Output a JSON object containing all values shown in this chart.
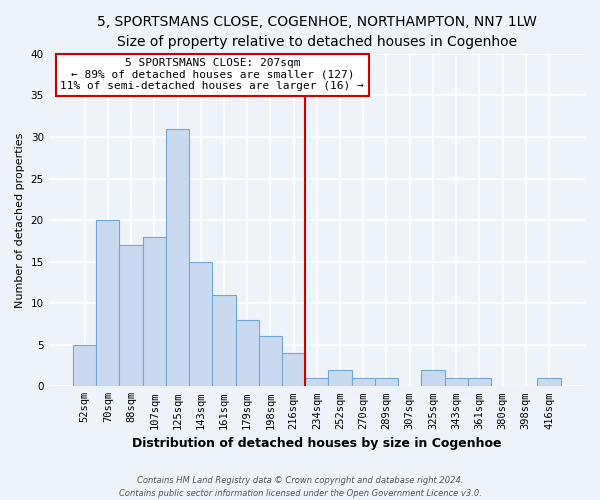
{
  "title": "5, SPORTSMANS CLOSE, COGENHOE, NORTHAMPTON, NN7 1LW",
  "subtitle": "Size of property relative to detached houses in Cogenhoe",
  "xlabel": "Distribution of detached houses by size in Cogenhoe",
  "ylabel": "Number of detached properties",
  "bar_labels": [
    "52sqm",
    "70sqm",
    "88sqm",
    "107sqm",
    "125sqm",
    "143sqm",
    "161sqm",
    "179sqm",
    "198sqm",
    "216sqm",
    "234sqm",
    "252sqm",
    "270sqm",
    "289sqm",
    "307sqm",
    "325sqm",
    "343sqm",
    "361sqm",
    "380sqm",
    "398sqm",
    "416sqm"
  ],
  "bar_values": [
    5,
    20,
    17,
    18,
    31,
    15,
    11,
    8,
    6,
    4,
    1,
    2,
    1,
    1,
    0,
    2,
    1,
    1,
    0,
    0,
    1
  ],
  "bar_color": "#c9daf0",
  "bar_edge_color": "#6fa8d4",
  "vline_x": 9.5,
  "vline_color": "#cc0000",
  "annotation_text": "5 SPORTSMANS CLOSE: 207sqm\n← 89% of detached houses are smaller (127)\n11% of semi-detached houses are larger (16) →",
  "annotation_box_edge": "#cc0000",
  "annotation_box_face": "#ffffff",
  "ylim": [
    0,
    40
  ],
  "yticks": [
    0,
    5,
    10,
    15,
    20,
    25,
    30,
    35,
    40
  ],
  "footer1": "Contains HM Land Registry data © Crown copyright and database right 2024.",
  "footer2": "Contains public sector information licensed under the Open Government Licence v3.0.",
  "bg_color": "#eef2f9",
  "plot_bg_color": "#eef2f9",
  "title_fontsize": 10,
  "subtitle_fontsize": 9,
  "xlabel_fontsize": 9,
  "ylabel_fontsize": 8,
  "tick_fontsize": 7.5,
  "annotation_fontsize": 8,
  "footer_fontsize": 6
}
